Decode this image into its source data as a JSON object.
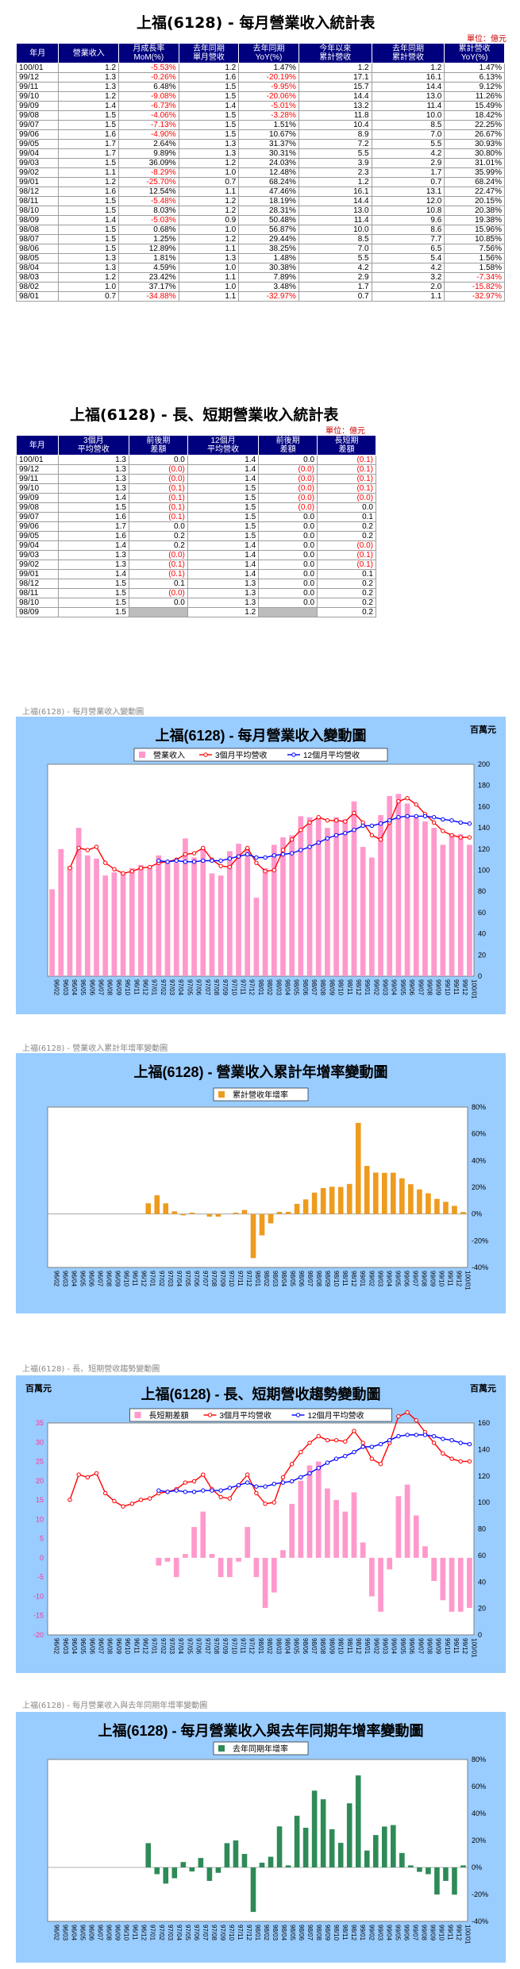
{
  "table1": {
    "title": "上福(6128) - 每月營業收入統計表",
    "unit": "單位：億元",
    "headers": [
      "年月",
      "營業收入",
      "月成長率 MoM(%)",
      "去年同期 單月營收",
      "去年同期 YoY(%)",
      "今年以來 累計營收",
      "去年同期 累計營收",
      "累計營收 YoY(%)"
    ],
    "rows": [
      [
        "100/01",
        "1.2",
        "-5.53%",
        "1.2",
        "1.47%",
        "1.2",
        "1.2",
        "1.47%"
      ],
      [
        "99/12",
        "1.3",
        "-0.26%",
        "1.6",
        "-20.19%",
        "17.1",
        "16.1",
        "6.13%"
      ],
      [
        "99/11",
        "1.3",
        "6.48%",
        "1.5",
        "-9.95%",
        "15.7",
        "14.4",
        "9.12%"
      ],
      [
        "99/10",
        "1.2",
        "-9.08%",
        "1.5",
        "-20.06%",
        "14.4",
        "13.0",
        "11.26%"
      ],
      [
        "99/09",
        "1.4",
        "-6.73%",
        "1.4",
        "-5.01%",
        "13.2",
        "11.4",
        "15.49%"
      ],
      [
        "99/08",
        "1.5",
        "-4.06%",
        "1.5",
        "-3.28%",
        "11.8",
        "10.0",
        "18.42%"
      ],
      [
        "99/07",
        "1.5",
        "-7.13%",
        "1.5",
        "1.51%",
        "10.4",
        "8.5",
        "22.25%"
      ],
      [
        "99/06",
        "1.6",
        "-4.90%",
        "1.5",
        "10.67%",
        "8.9",
        "7.0",
        "26.67%"
      ],
      [
        "99/05",
        "1.7",
        "2.64%",
        "1.3",
        "31.37%",
        "7.2",
        "5.5",
        "30.93%"
      ],
      [
        "99/04",
        "1.7",
        "9.89%",
        "1.3",
        "30.31%",
        "5.5",
        "4.2",
        "30.80%"
      ],
      [
        "99/03",
        "1.5",
        "36.09%",
        "1.2",
        "24.03%",
        "3.9",
        "2.9",
        "31.01%"
      ],
      [
        "99/02",
        "1.1",
        "-8.29%",
        "1.0",
        "12.48%",
        "2.3",
        "1.7",
        "35.99%"
      ],
      [
        "99/01",
        "1.2",
        "-25.70%",
        "0.7",
        "68.24%",
        "1.2",
        "0.7",
        "68.24%"
      ],
      [
        "98/12",
        "1.6",
        "12.54%",
        "1.1",
        "47.46%",
        "16.1",
        "13.1",
        "22.47%"
      ],
      [
        "98/11",
        "1.5",
        "-5.48%",
        "1.2",
        "18.19%",
        "14.4",
        "12.0",
        "20.15%"
      ],
      [
        "98/10",
        "1.5",
        "8.03%",
        "1.2",
        "28.31%",
        "13.0",
        "10.8",
        "20.38%"
      ],
      [
        "98/09",
        "1.4",
        "-5.03%",
        "0.9",
        "50.48%",
        "11.4",
        "9.6",
        "19.38%"
      ],
      [
        "98/08",
        "1.5",
        "0.68%",
        "1.0",
        "56.87%",
        "10.0",
        "8.6",
        "15.96%"
      ],
      [
        "98/07",
        "1.5",
        "1.25%",
        "1.2",
        "29.44%",
        "8.5",
        "7.7",
        "10.85%"
      ],
      [
        "98/06",
        "1.5",
        "12.89%",
        "1.1",
        "38.25%",
        "7.0",
        "6.5",
        "7.56%"
      ],
      [
        "98/05",
        "1.3",
        "1.81%",
        "1.3",
        "1.48%",
        "5.5",
        "5.4",
        "1.56%"
      ],
      [
        "98/04",
        "1.3",
        "4.59%",
        "1.0",
        "30.38%",
        "4.2",
        "4.2",
        "1.58%"
      ],
      [
        "98/03",
        "1.2",
        "23.42%",
        "1.1",
        "7.89%",
        "2.9",
        "3.2",
        "-7.34%"
      ],
      [
        "98/02",
        "1.0",
        "37.17%",
        "1.0",
        "3.48%",
        "1.7",
        "2.0",
        "-15.82%"
      ],
      [
        "98/01",
        "0.7",
        "-34.88%",
        "1.1",
        "-32.97%",
        "0.7",
        "1.1",
        "-32.97%"
      ]
    ]
  },
  "table2": {
    "title": "上福(6128) - 長、短期營業收入統計表",
    "unit": "單位：億元",
    "headers": [
      "年月",
      "3個月 平均營收",
      "前後期 差額",
      "12個月 平均營收",
      "前後期 差額",
      "長短期 差額"
    ],
    "rows": [
      [
        "100/01",
        "1.3",
        "0.0",
        "1.4",
        "0.0",
        "(0.1)"
      ],
      [
        "99/12",
        "1.3",
        "(0.0)",
        "1.4",
        "(0.0)",
        "(0.1)"
      ],
      [
        "99/11",
        "1.3",
        "(0.0)",
        "1.4",
        "(0.0)",
        "(0.1)"
      ],
      [
        "99/10",
        "1.3",
        "(0.1)",
        "1.5",
        "(0.0)",
        "(0.1)"
      ],
      [
        "99/09",
        "1.4",
        "(0.1)",
        "1.5",
        "(0.0)",
        "(0.0)"
      ],
      [
        "99/08",
        "1.5",
        "(0.1)",
        "1.5",
        "(0.0)",
        "0.0"
      ],
      [
        "99/07",
        "1.6",
        "(0.1)",
        "1.5",
        "0.0",
        "0.1"
      ],
      [
        "99/06",
        "1.7",
        "0.0",
        "1.5",
        "0.0",
        "0.2"
      ],
      [
        "99/05",
        "1.6",
        "0.2",
        "1.5",
        "0.0",
        "0.2"
      ],
      [
        "99/04",
        "1.4",
        "0.2",
        "1.4",
        "0.0",
        "(0.0)"
      ],
      [
        "99/03",
        "1.3",
        "(0.0)",
        "1.4",
        "0.0",
        "(0.1)"
      ],
      [
        "99/02",
        "1.3",
        "(0.1)",
        "1.4",
        "0.0",
        "(0.1)"
      ],
      [
        "99/01",
        "1.4",
        "(0.1)",
        "1.4",
        "0.0",
        "0.1"
      ],
      [
        "98/12",
        "1.5",
        "0.1",
        "1.3",
        "0.0",
        "0.2"
      ],
      [
        "98/11",
        "1.5",
        "(0.0)",
        "1.3",
        "0.0",
        "0.2"
      ],
      [
        "98/10",
        "1.5",
        "0.0",
        "1.3",
        "0.0",
        "0.2"
      ],
      [
        "98/09",
        "1.5",
        "",
        "1.2",
        "",
        "0.2"
      ]
    ]
  },
  "captions": {
    "c1": "上福(6128) - 每月營業收入變動圖",
    "c2": "上福(6128) -  營業收入累計年增率變動圖",
    "c3": "上福(6128) -  長、短期營收趨勢變動圖",
    "c4": "上福(6128) -  每月營業收入與去年同期年增率變動圖"
  },
  "chart_data": [
    {
      "type": "bar",
      "title": "上福(6128) - 每月營業收入變動圖",
      "unit_label": "百萬元",
      "right_axis": [
        0,
        200,
        20
      ],
      "x": [
        "96/02",
        "96/03",
        "96/04",
        "96/05",
        "96/06",
        "96/07",
        "96/08",
        "96/09",
        "96/10",
        "96/11",
        "96/12",
        "97/01",
        "97/02",
        "97/03",
        "97/04",
        "97/05",
        "97/06",
        "97/07",
        "97/08",
        "97/09",
        "97/10",
        "97/11",
        "97/12",
        "98/01",
        "98/02",
        "98/03",
        "98/04",
        "98/05",
        "98/06",
        "98/07",
        "98/08",
        "98/09",
        "98/10",
        "98/11",
        "98/12",
        "99/01",
        "99/02",
        "99/03",
        "99/04",
        "99/05",
        "99/06",
        "99/07",
        "99/08",
        "99/09",
        "99/10",
        "99/11",
        "99/12",
        "100/01"
      ],
      "series": [
        {
          "name": "營業收入",
          "kind": "bar",
          "color": "#ff99cc",
          "values": [
            82,
            120,
            104,
            140,
            114,
            111,
            95,
            98,
            98,
            102,
            105,
            103,
            114,
            108,
            107,
            130,
            112,
            120,
            97,
            95,
            118,
            125,
            121,
            74,
            102,
            124,
            131,
            133,
            151,
            150,
            150,
            140,
            150,
            148,
            165,
            122,
            112,
            152,
            170,
            172,
            163,
            150,
            146,
            140,
            124,
            134,
            134,
            124
          ]
        },
        {
          "name": "3個月平均營收",
          "kind": "line",
          "color": "#ff0000",
          "values": [
            null,
            null,
            102,
            121,
            119,
            122,
            107,
            101,
            97,
            99,
            102,
            103,
            107,
            108,
            110,
            115,
            116,
            121,
            110,
            104,
            103,
            113,
            121,
            107,
            99,
            100,
            119,
            129,
            138,
            145,
            150,
            147,
            147,
            146,
            154,
            145,
            133,
            129,
            145,
            165,
            168,
            162,
            153,
            145,
            137,
            133,
            131,
            131
          ]
        },
        {
          "name": "12個月平均營收",
          "kind": "line",
          "color": "#0000ff",
          "values": [
            null,
            null,
            null,
            null,
            null,
            null,
            null,
            null,
            null,
            null,
            null,
            null,
            109,
            108,
            109,
            108,
            108,
            109,
            109,
            109,
            111,
            113,
            115,
            112,
            112,
            114,
            115,
            116,
            119,
            122,
            126,
            130,
            133,
            135,
            138,
            142,
            142,
            144,
            147,
            150,
            151,
            151,
            151,
            150,
            148,
            147,
            145,
            144
          ]
        }
      ]
    },
    {
      "type": "bar",
      "title": "上福(6128) -  營業收入累計年增率變動圖",
      "right_axis": [
        -40,
        80,
        20
      ],
      "x": [
        "96/02",
        "96/03",
        "96/04",
        "96/05",
        "96/06",
        "96/07",
        "96/08",
        "96/09",
        "96/10",
        "96/11",
        "96/12",
        "97/01",
        "97/02",
        "97/03",
        "97/04",
        "97/05",
        "97/06",
        "97/07",
        "97/08",
        "97/09",
        "97/10",
        "97/11",
        "97/12",
        "98/01",
        "98/02",
        "98/03",
        "98/04",
        "98/05",
        "98/06",
        "98/07",
        "98/08",
        "98/09",
        "98/10",
        "98/11",
        "98/12",
        "99/01",
        "99/02",
        "99/03",
        "99/04",
        "99/05",
        "99/06",
        "99/07",
        "99/08",
        "99/09",
        "99/10",
        "99/11",
        "99/12",
        "100/01"
      ],
      "series": [
        {
          "name": "累計營收年增率",
          "kind": "bar",
          "color": "#ee9b1e",
          "values": [
            null,
            null,
            null,
            null,
            null,
            null,
            null,
            null,
            null,
            null,
            null,
            8,
            14,
            8,
            2,
            -1,
            1,
            0,
            -2,
            -2,
            0,
            1,
            3,
            -33,
            -16,
            -7,
            1.6,
            1.6,
            7.6,
            10.9,
            16,
            19.4,
            20.4,
            20.2,
            22.5,
            68.2,
            36,
            31,
            30.8,
            30.9,
            26.7,
            22.3,
            18.4,
            15.5,
            11.3,
            9.1,
            6.1,
            1.5
          ]
        }
      ]
    },
    {
      "type": "bar",
      "title": "上福(6128) - 長、短期營收趨勢變動圖",
      "unit_label": "百萬元",
      "left_axis": [
        -20,
        35,
        5
      ],
      "right_axis": [
        0,
        160,
        20
      ],
      "x": [
        "96/02",
        "96/03",
        "96/04",
        "96/05",
        "96/06",
        "96/07",
        "96/08",
        "96/09",
        "96/10",
        "96/11",
        "96/12",
        "97/01",
        "97/02",
        "97/03",
        "97/04",
        "97/05",
        "97/06",
        "97/07",
        "97/08",
        "97/09",
        "97/10",
        "97/11",
        "97/12",
        "98/01",
        "98/02",
        "98/03",
        "98/04",
        "98/05",
        "98/06",
        "98/07",
        "98/08",
        "98/09",
        "98/10",
        "98/11",
        "98/12",
        "99/01",
        "99/02",
        "99/03",
        "99/04",
        "99/05",
        "99/06",
        "99/07",
        "99/08",
        "99/09",
        "99/10",
        "99/11",
        "99/12",
        "100/01"
      ],
      "series": [
        {
          "name": "長短期差額",
          "kind": "bar",
          "color": "#ff99cc",
          "values": [
            null,
            null,
            null,
            null,
            null,
            null,
            null,
            null,
            null,
            null,
            null,
            null,
            -2,
            -1,
            -5,
            1,
            8,
            12,
            1,
            -5,
            -5,
            -1,
            8,
            -5,
            -13,
            -9,
            2,
            14,
            20,
            24,
            25,
            18,
            15,
            12,
            17,
            4,
            -10,
            -14,
            -3,
            16,
            19,
            11,
            3,
            -6,
            -11,
            -14,
            -14,
            -13
          ]
        },
        {
          "name": "3個月平均營收",
          "kind": "line",
          "color": "#ff0000",
          "values": [
            null,
            null,
            102,
            121,
            119,
            122,
            107,
            101,
            97,
            99,
            102,
            103,
            107,
            108,
            110,
            115,
            116,
            121,
            110,
            104,
            103,
            113,
            121,
            107,
            99,
            100,
            119,
            129,
            138,
            145,
            150,
            147,
            147,
            146,
            154,
            145,
            133,
            129,
            145,
            165,
            168,
            162,
            153,
            145,
            137,
            133,
            131,
            131
          ]
        },
        {
          "name": "12個月平均營收",
          "kind": "line",
          "color": "#0000ff",
          "values": [
            null,
            null,
            null,
            null,
            null,
            null,
            null,
            null,
            null,
            null,
            null,
            null,
            109,
            108,
            109,
            108,
            108,
            109,
            109,
            109,
            111,
            113,
            115,
            112,
            112,
            114,
            115,
            116,
            119,
            122,
            126,
            130,
            133,
            135,
            138,
            142,
            142,
            144,
            147,
            150,
            151,
            151,
            151,
            150,
            148,
            147,
            145,
            144
          ]
        }
      ]
    },
    {
      "type": "bar",
      "title": "上福(6128) - 每月營業收入與去年同期年增率變動圖",
      "right_axis": [
        -40,
        80,
        20
      ],
      "x": [
        "96/02",
        "96/03",
        "96/04",
        "96/05",
        "96/06",
        "96/07",
        "96/08",
        "96/09",
        "96/10",
        "96/11",
        "96/12",
        "97/01",
        "97/02",
        "97/03",
        "97/04",
        "97/05",
        "97/06",
        "97/07",
        "97/08",
        "97/09",
        "97/10",
        "97/11",
        "97/12",
        "98/01",
        "98/02",
        "98/03",
        "98/04",
        "98/05",
        "98/06",
        "98/07",
        "98/08",
        "98/09",
        "98/10",
        "98/11",
        "98/12",
        "99/01",
        "99/02",
        "99/03",
        "99/04",
        "99/05",
        "99/06",
        "99/07",
        "99/08",
        "99/09",
        "99/10",
        "99/11",
        "99/12",
        "100/01"
      ],
      "series": [
        {
          "name": "去年同期年增率",
          "kind": "bar",
          "color": "#2e8b57",
          "values": [
            null,
            null,
            null,
            null,
            null,
            null,
            null,
            null,
            null,
            null,
            null,
            18,
            -5,
            -12,
            -8,
            4,
            -3,
            7,
            -10,
            -4,
            18,
            20,
            10,
            -33,
            3.5,
            7.9,
            30.4,
            1.5,
            38.3,
            29.4,
            56.9,
            50.5,
            28.3,
            18.2,
            47.5,
            68.2,
            12.5,
            24,
            30.3,
            31.4,
            10.7,
            1.5,
            -3.3,
            -5,
            -20.1,
            -10,
            -20.2,
            1.5
          ]
        }
      ]
    }
  ]
}
